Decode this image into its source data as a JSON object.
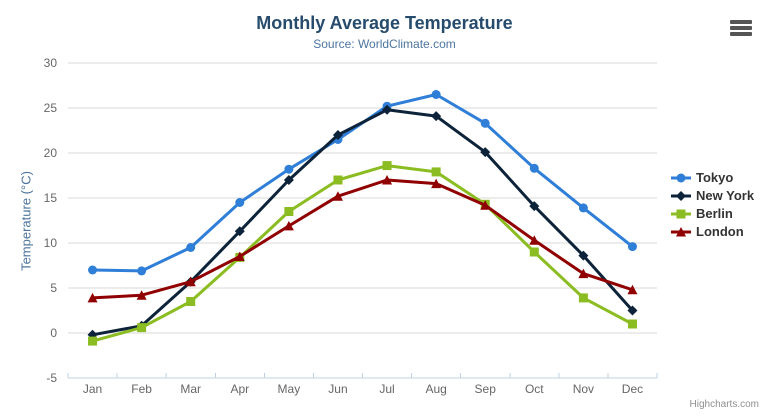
{
  "header": {
    "title": "Monthly Average Temperature",
    "subtitle": "Source: WorldClimate.com"
  },
  "credits": "Highcharts.com",
  "menu_icon": "hamburger-menu-icon",
  "colors": {
    "title": "#274b6d",
    "subtitle": "#4d759e",
    "axis_title": "#4d759e",
    "axis_labels": "#666666",
    "grid_line": "#d8d8d8",
    "axis_line": "#c0d0e0",
    "legend_text": "#333333",
    "credits_text": "#909090"
  },
  "chart_data": {
    "type": "line",
    "title": "Monthly Average Temperature",
    "subtitle": "Source: WorldClimate.com",
    "xlabel": "",
    "ylabel": "Temperature (°C)",
    "categories": [
      "Jan",
      "Feb",
      "Mar",
      "Apr",
      "May",
      "Jun",
      "Jul",
      "Aug",
      "Sep",
      "Oct",
      "Nov",
      "Dec"
    ],
    "ylim": [
      -5,
      30
    ],
    "ytick_step": 5,
    "yticks": [
      -5,
      0,
      5,
      10,
      15,
      20,
      25,
      30
    ],
    "grid": true,
    "legend_position": "right",
    "series": [
      {
        "name": "Tokyo",
        "color": "#2f7ed8",
        "marker": "circle",
        "values": [
          7.0,
          6.9,
          9.5,
          14.5,
          18.2,
          21.5,
          25.2,
          26.5,
          23.3,
          18.3,
          13.9,
          9.6
        ]
      },
      {
        "name": "New York",
        "color": "#0d233a",
        "marker": "diamond",
        "values": [
          -0.2,
          0.8,
          5.7,
          11.3,
          17.0,
          22.0,
          24.8,
          24.1,
          20.1,
          14.1,
          8.6,
          2.5
        ]
      },
      {
        "name": "Berlin",
        "color": "#8bbc21",
        "marker": "square",
        "values": [
          -0.9,
          0.6,
          3.5,
          8.4,
          13.5,
          17.0,
          18.6,
          17.9,
          14.3,
          9.0,
          3.9,
          1.0
        ]
      },
      {
        "name": "London",
        "color": "#910000",
        "marker": "triangle",
        "values": [
          3.9,
          4.2,
          5.7,
          8.5,
          11.9,
          15.2,
          17.0,
          16.6,
          14.2,
          10.3,
          6.6,
          4.8
        ]
      }
    ]
  }
}
